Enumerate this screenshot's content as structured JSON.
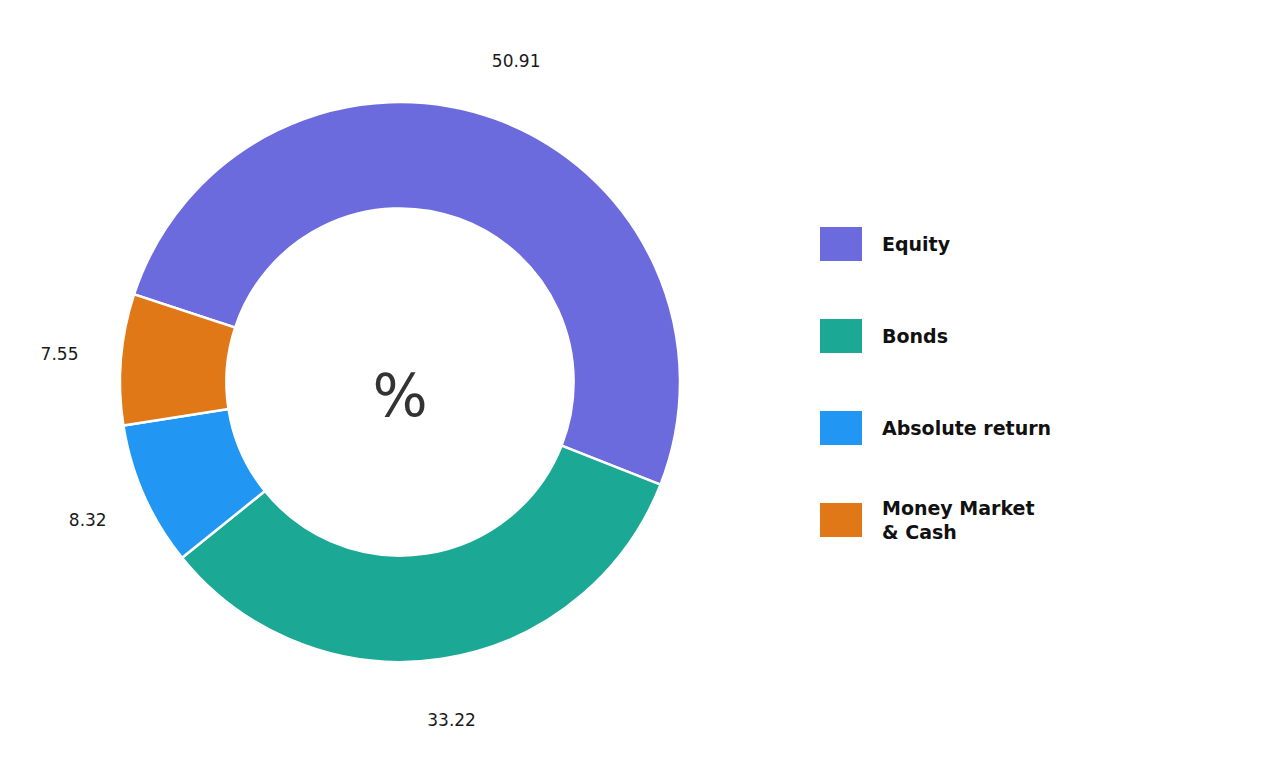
{
  "chart_data": {
    "type": "donut",
    "categories": [
      "Equity",
      "Bonds",
      "Absolute return",
      "Money Market\n& Cash"
    ],
    "values": [
      50.91,
      33.22,
      8.32,
      7.55
    ],
    "colors": [
      "#6B6BDD",
      "#1BA894",
      "#2196F3",
      "#E07818"
    ],
    "annotations": [
      "%"
    ],
    "data_labels": true,
    "legend": "right"
  }
}
